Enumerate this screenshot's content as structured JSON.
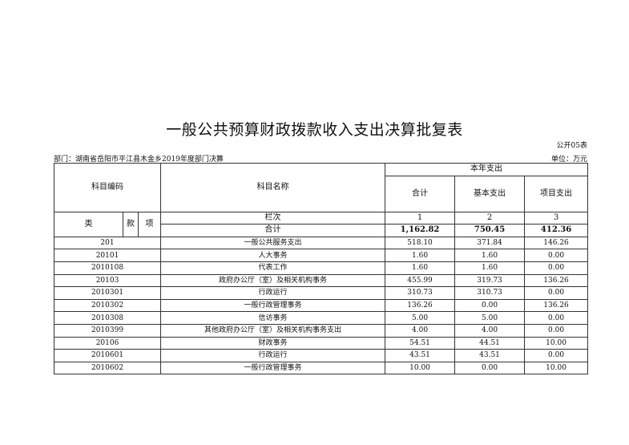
{
  "title": "一般公共预算财政拨款收入支出决算批复表",
  "table_tag": "公开05表",
  "department": "部门：湖南省岳阳市平江县木金乡2019年度部门决算",
  "unit": "单位：万元",
  "header": {
    "code": "科目编码",
    "name": "科目名称",
    "current_year": "本年支出",
    "total": "合计",
    "basic": "基本支出",
    "project": "项目支出",
    "lei": "类",
    "kuan": "款",
    "xiang": "项",
    "column_index": "栏次",
    "col1": "1",
    "col2": "2",
    "col3": "3"
  },
  "total_row": {
    "label": "合计",
    "total": "1,162.82",
    "basic": "750.45",
    "project": "412.36"
  },
  "rows": [
    {
      "code": "201",
      "name": "一般公共服务支出",
      "total": "518.10",
      "basic": "371.84",
      "project": "146.26"
    },
    {
      "code": "20101",
      "name": "人大事务",
      "total": "1.60",
      "basic": "1.60",
      "project": "0.00"
    },
    {
      "code": "2010108",
      "name": "代表工作",
      "total": "1.60",
      "basic": "1.60",
      "project": "0.00"
    },
    {
      "code": "20103",
      "name": "政府办公厅（室）及相关机构事务",
      "total": "455.99",
      "basic": "319.73",
      "project": "136.26"
    },
    {
      "code": "2010301",
      "name": "行政运行",
      "total": "310.73",
      "basic": "310.73",
      "project": "0.00"
    },
    {
      "code": "2010302",
      "name": "一般行政管理事务",
      "total": "136.26",
      "basic": "0.00",
      "project": "136.26"
    },
    {
      "code": "2010308",
      "name": "信访事务",
      "total": "5.00",
      "basic": "5.00",
      "project": "0.00"
    },
    {
      "code": "2010399",
      "name": "其他政府办公厅（室）及相关机构事务支出",
      "total": "4.00",
      "basic": "4.00",
      "project": "0.00"
    },
    {
      "code": "20106",
      "name": "财政事务",
      "total": "54.51",
      "basic": "44.51",
      "project": "10.00"
    },
    {
      "code": "2010601",
      "name": "行政运行",
      "total": "43.51",
      "basic": "43.51",
      "project": "0.00"
    },
    {
      "code": "2010602",
      "name": "一般行政管理事务",
      "total": "10.00",
      "basic": "0.00",
      "project": "10.00"
    }
  ]
}
